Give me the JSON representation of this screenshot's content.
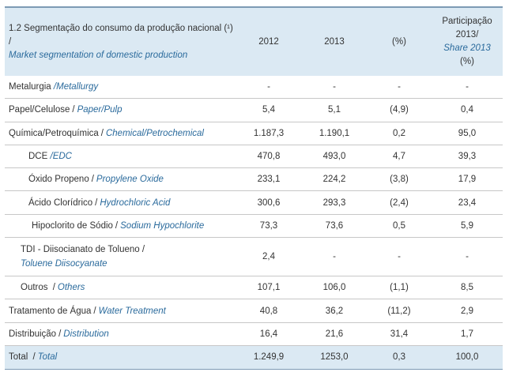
{
  "header": {
    "title_pt": "1.2  Segmentação do consumo da produção nacional (¹) /",
    "title_en": "Market segmentation of domestic production",
    "col_2012": "2012",
    "col_2013": "2013",
    "col_pct": "(%)",
    "col_share_pt": "Participação 2013/",
    "col_share_en": "Share 2013",
    "col_share_unit": "(%)"
  },
  "rows": [
    {
      "pt": "Metalurgia",
      "en": "Metallurgy",
      "v2012": "-",
      "v2013": "-",
      "pct": "-",
      "share": "-"
    },
    {
      "pt": "Papel/Celulose",
      "en": "Paper/Pulp",
      "v2012": "5,4",
      "v2013": "5,1",
      "pct": "(4,9)",
      "share": "0,4"
    },
    {
      "pt": "Química/Petroquímica",
      "en": "Chemical/Petrochemical",
      "v2012": "1.187,3",
      "v2013": "1.190,1",
      "pct": "0,2",
      "share": "95,0"
    },
    {
      "pt": "DCE",
      "en": "EDC",
      "v2012": "470,8",
      "v2013": "493,0",
      "pct": "4,7",
      "share": "39,3"
    },
    {
      "pt": "Óxido Propeno",
      "en": "Propylene Oxide",
      "v2012": "233,1",
      "v2013": "224,2",
      "pct": "(3,8)",
      "share": "17,9"
    },
    {
      "pt": "Ácido Clorídrico",
      "en": "Hydrochloric Acid",
      "v2012": "300,6",
      "v2013": "293,3",
      "pct": "(2,4)",
      "share": "23,4"
    },
    {
      "pt": "Hipoclorito de Sódio",
      "en": "Sodium Hypochlorite",
      "v2012": "73,3",
      "v2013": "73,6",
      "pct": "0,5",
      "share": "5,9"
    },
    {
      "pt": "TDI - Diisocianato de Tolueno /",
      "en": "Toluene Diisocyanate",
      "v2012": "2,4",
      "v2013": "-",
      "pct": "-",
      "share": "-"
    },
    {
      "pt": "Outros",
      "en": "Others",
      "v2012": "107,1",
      "v2013": "106,0",
      "pct": "(1,1)",
      "share": "8,5"
    },
    {
      "pt": "Tratamento de Água",
      "en": "Water Treatment",
      "v2012": "40,8",
      "v2013": "36,2",
      "pct": "(11,2)",
      "share": "2,9"
    },
    {
      "pt": "Distribuição",
      "en": "Distribution",
      "v2012": "16,4",
      "v2013": "21,6",
      "pct": "31,4",
      "share": "1,7"
    }
  ],
  "total": {
    "pt": "Total",
    "en": "Total",
    "v2012": "1.249,9",
    "v2013": "1253,0",
    "pct": "0,3",
    "share": "100,0"
  }
}
